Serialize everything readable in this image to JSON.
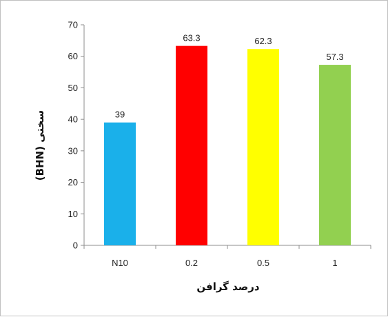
{
  "chart_data": {
    "type": "bar",
    "categories": [
      "N10",
      "0.2",
      "0.5",
      "1"
    ],
    "values": [
      39,
      63.3,
      62.3,
      57.3
    ],
    "data_labels": [
      "39",
      "63.3",
      "62.3",
      "57.3"
    ],
    "colors": [
      "#1ab0ea",
      "#ff0000",
      "#ffff00",
      "#92d050"
    ],
    "xlabel": "درصد گرافن",
    "ylabel": "سختی (BHN)",
    "ylim": [
      0,
      70
    ],
    "yticks": [
      0,
      10,
      20,
      30,
      40,
      50,
      60,
      70
    ],
    "grid": false,
    "legend": "none"
  }
}
